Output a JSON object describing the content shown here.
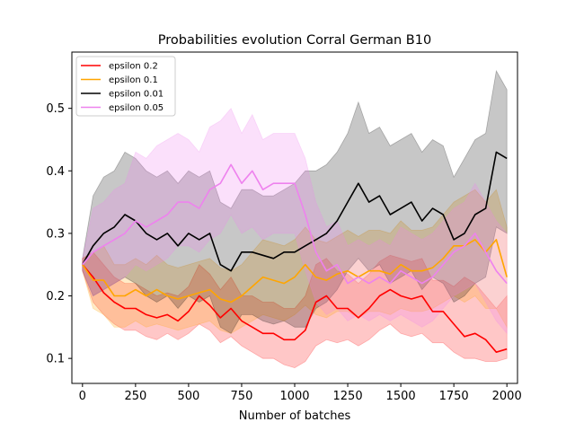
{
  "chart_data": {
    "type": "line",
    "title": "Probabilities evolution Corral German B10",
    "xlabel": "Number of batches",
    "ylabel": "",
    "xlim": [
      -50,
      2050
    ],
    "ylim": [
      0.06,
      0.59
    ],
    "xticks": [
      0,
      250,
      500,
      750,
      1000,
      1250,
      1500,
      1750,
      2000
    ],
    "yticks": [
      0.1,
      0.2,
      0.3,
      0.4,
      0.5
    ],
    "grid": false,
    "legend_position": "upper-left",
    "series": [
      {
        "name": "epsilon 0.2",
        "color": "#ff0000",
        "x": [
          0,
          50,
          100,
          150,
          200,
          250,
          300,
          350,
          400,
          450,
          500,
          550,
          600,
          650,
          700,
          750,
          800,
          850,
          900,
          950,
          1000,
          1050,
          1100,
          1150,
          1200,
          1250,
          1300,
          1350,
          1400,
          1450,
          1500,
          1550,
          1600,
          1650,
          1700,
          1750,
          1800,
          1850,
          1900,
          1950,
          2000
        ],
        "mean": [
          0.25,
          0.23,
          0.205,
          0.19,
          0.18,
          0.18,
          0.17,
          0.165,
          0.17,
          0.16,
          0.175,
          0.2,
          0.185,
          0.165,
          0.18,
          0.16,
          0.15,
          0.14,
          0.14,
          0.13,
          0.13,
          0.145,
          0.19,
          0.2,
          0.18,
          0.18,
          0.165,
          0.18,
          0.2,
          0.21,
          0.2,
          0.195,
          0.2,
          0.175,
          0.175,
          0.155,
          0.135,
          0.14,
          0.13,
          0.11,
          0.115
        ],
        "lower": [
          0.24,
          0.19,
          0.17,
          0.155,
          0.145,
          0.145,
          0.135,
          0.13,
          0.14,
          0.13,
          0.14,
          0.155,
          0.145,
          0.125,
          0.135,
          0.12,
          0.11,
          0.1,
          0.1,
          0.09,
          0.085,
          0.095,
          0.12,
          0.13,
          0.125,
          0.13,
          0.12,
          0.13,
          0.145,
          0.155,
          0.14,
          0.135,
          0.14,
          0.125,
          0.125,
          0.11,
          0.1,
          0.1,
          0.095,
          0.095,
          0.1
        ],
        "upper": [
          0.26,
          0.27,
          0.25,
          0.23,
          0.22,
          0.22,
          0.21,
          0.2,
          0.205,
          0.2,
          0.215,
          0.25,
          0.235,
          0.21,
          0.23,
          0.2,
          0.2,
          0.19,
          0.19,
          0.18,
          0.18,
          0.2,
          0.25,
          0.26,
          0.24,
          0.235,
          0.22,
          0.235,
          0.255,
          0.265,
          0.26,
          0.255,
          0.26,
          0.225,
          0.225,
          0.215,
          0.23,
          0.22,
          0.2,
          0.18,
          0.2
        ]
      },
      {
        "name": "epsilon 0.1",
        "color": "#ffa500",
        "x": [
          0,
          50,
          100,
          150,
          200,
          250,
          300,
          350,
          400,
          450,
          500,
          550,
          600,
          650,
          700,
          750,
          800,
          850,
          900,
          950,
          1000,
          1050,
          1100,
          1150,
          1200,
          1250,
          1300,
          1350,
          1400,
          1450,
          1500,
          1550,
          1600,
          1650,
          1700,
          1750,
          1800,
          1850,
          1900,
          1950,
          2000
        ],
        "mean": [
          0.25,
          0.225,
          0.225,
          0.2,
          0.2,
          0.21,
          0.2,
          0.21,
          0.2,
          0.195,
          0.2,
          0.205,
          0.21,
          0.195,
          0.19,
          0.2,
          0.215,
          0.23,
          0.225,
          0.22,
          0.23,
          0.25,
          0.23,
          0.225,
          0.235,
          0.24,
          0.23,
          0.24,
          0.24,
          0.235,
          0.25,
          0.24,
          0.24,
          0.245,
          0.26,
          0.28,
          0.28,
          0.29,
          0.27,
          0.29,
          0.23
        ],
        "lower": [
          0.24,
          0.18,
          0.17,
          0.15,
          0.15,
          0.16,
          0.15,
          0.155,
          0.15,
          0.145,
          0.15,
          0.155,
          0.16,
          0.145,
          0.14,
          0.15,
          0.16,
          0.17,
          0.165,
          0.16,
          0.17,
          0.185,
          0.17,
          0.165,
          0.175,
          0.175,
          0.165,
          0.175,
          0.175,
          0.17,
          0.18,
          0.175,
          0.175,
          0.18,
          0.19,
          0.2,
          0.19,
          0.2,
          0.18,
          0.18,
          0.15
        ],
        "upper": [
          0.26,
          0.27,
          0.28,
          0.25,
          0.25,
          0.26,
          0.25,
          0.265,
          0.25,
          0.245,
          0.25,
          0.255,
          0.26,
          0.245,
          0.24,
          0.25,
          0.27,
          0.29,
          0.285,
          0.28,
          0.29,
          0.31,
          0.29,
          0.285,
          0.295,
          0.305,
          0.295,
          0.305,
          0.305,
          0.3,
          0.32,
          0.305,
          0.305,
          0.31,
          0.33,
          0.35,
          0.36,
          0.37,
          0.35,
          0.37,
          0.31
        ]
      },
      {
        "name": "epsilon 0.01",
        "color": "#000000",
        "x": [
          0,
          50,
          100,
          150,
          200,
          250,
          300,
          350,
          400,
          450,
          500,
          550,
          600,
          650,
          700,
          750,
          800,
          850,
          900,
          950,
          1000,
          1050,
          1100,
          1150,
          1200,
          1250,
          1300,
          1350,
          1400,
          1450,
          1500,
          1550,
          1600,
          1650,
          1700,
          1750,
          1800,
          1850,
          1900,
          1950,
          2000
        ],
        "mean": [
          0.25,
          0.28,
          0.3,
          0.31,
          0.33,
          0.32,
          0.3,
          0.29,
          0.3,
          0.28,
          0.3,
          0.29,
          0.3,
          0.25,
          0.24,
          0.27,
          0.27,
          0.265,
          0.26,
          0.27,
          0.27,
          0.28,
          0.29,
          0.3,
          0.32,
          0.35,
          0.38,
          0.35,
          0.36,
          0.33,
          0.34,
          0.35,
          0.32,
          0.34,
          0.33,
          0.29,
          0.3,
          0.33,
          0.34,
          0.43,
          0.42
        ],
        "lower": [
          0.24,
          0.2,
          0.21,
          0.22,
          0.23,
          0.22,
          0.2,
          0.19,
          0.2,
          0.18,
          0.2,
          0.19,
          0.2,
          0.15,
          0.14,
          0.17,
          0.17,
          0.16,
          0.155,
          0.16,
          0.15,
          0.15,
          0.18,
          0.19,
          0.21,
          0.24,
          0.26,
          0.24,
          0.25,
          0.22,
          0.23,
          0.24,
          0.21,
          0.23,
          0.22,
          0.19,
          0.2,
          0.22,
          0.23,
          0.31,
          0.3
        ],
        "upper": [
          0.26,
          0.36,
          0.39,
          0.4,
          0.43,
          0.42,
          0.4,
          0.39,
          0.4,
          0.38,
          0.4,
          0.39,
          0.4,
          0.35,
          0.34,
          0.37,
          0.37,
          0.36,
          0.36,
          0.37,
          0.38,
          0.4,
          0.4,
          0.41,
          0.43,
          0.46,
          0.51,
          0.46,
          0.47,
          0.44,
          0.45,
          0.46,
          0.43,
          0.45,
          0.44,
          0.39,
          0.42,
          0.45,
          0.46,
          0.56,
          0.53
        ]
      },
      {
        "name": "epsilon 0.05",
        "color": "#ee82ee",
        "x": [
          0,
          50,
          100,
          150,
          200,
          250,
          300,
          350,
          400,
          450,
          500,
          550,
          600,
          650,
          700,
          750,
          800,
          850,
          900,
          950,
          1000,
          1050,
          1100,
          1150,
          1200,
          1250,
          1300,
          1350,
          1400,
          1450,
          1500,
          1550,
          1600,
          1650,
          1700,
          1750,
          1800,
          1850,
          1900,
          1950,
          2000
        ],
        "mean": [
          0.25,
          0.27,
          0.28,
          0.29,
          0.3,
          0.32,
          0.31,
          0.32,
          0.33,
          0.35,
          0.35,
          0.34,
          0.37,
          0.38,
          0.41,
          0.38,
          0.4,
          0.37,
          0.38,
          0.38,
          0.38,
          0.33,
          0.27,
          0.24,
          0.25,
          0.22,
          0.23,
          0.22,
          0.23,
          0.22,
          0.24,
          0.23,
          0.22,
          0.23,
          0.25,
          0.27,
          0.28,
          0.3,
          0.27,
          0.24,
          0.22
        ],
        "lower": [
          0.24,
          0.2,
          0.21,
          0.22,
          0.23,
          0.25,
          0.24,
          0.25,
          0.26,
          0.28,
          0.28,
          0.27,
          0.29,
          0.3,
          0.33,
          0.3,
          0.31,
          0.29,
          0.3,
          0.3,
          0.3,
          0.24,
          0.19,
          0.17,
          0.18,
          0.16,
          0.17,
          0.16,
          0.17,
          0.16,
          0.17,
          0.16,
          0.15,
          0.16,
          0.18,
          0.2,
          0.21,
          0.22,
          0.19,
          0.16,
          0.14
        ],
        "upper": [
          0.26,
          0.34,
          0.35,
          0.37,
          0.38,
          0.43,
          0.42,
          0.44,
          0.45,
          0.46,
          0.45,
          0.43,
          0.47,
          0.48,
          0.5,
          0.46,
          0.49,
          0.45,
          0.46,
          0.46,
          0.46,
          0.42,
          0.35,
          0.31,
          0.32,
          0.28,
          0.29,
          0.28,
          0.29,
          0.28,
          0.31,
          0.3,
          0.29,
          0.3,
          0.32,
          0.34,
          0.35,
          0.38,
          0.35,
          0.32,
          0.3
        ]
      }
    ]
  }
}
